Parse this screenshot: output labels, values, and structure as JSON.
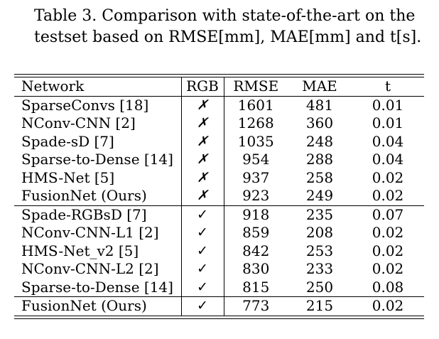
{
  "caption": {
    "line1": "Table 3. Comparison with state-of-the-art on the",
    "line2": "testset based on RMSE[mm], MAE[mm] and t[s]."
  },
  "table": {
    "headers": [
      "Network",
      "RGB",
      "RMSE",
      "MAE",
      "t"
    ],
    "marks": {
      "no": "✗",
      "yes": "✓"
    },
    "rows": [
      {
        "network": "SparseConvs [18]",
        "rgb": "✗",
        "rmse": "1601",
        "mae": "481",
        "t": "0.01"
      },
      {
        "network": "NConv-CNN [2]",
        "rgb": "✗",
        "rmse": "1268",
        "mae": "360",
        "t": "0.01"
      },
      {
        "network": "Spade-sD [7]",
        "rgb": "✗",
        "rmse": "1035",
        "mae": "248",
        "t": "0.04"
      },
      {
        "network": "Sparse-to-Dense [14]",
        "rgb": "✗",
        "rmse": "954",
        "mae": "288",
        "t": "0.04"
      },
      {
        "network": "HMS-Net [5]",
        "rgb": "✗",
        "rmse": "937",
        "mae": "258",
        "t": "0.02"
      },
      {
        "network": "FusionNet (Ours)",
        "rgb": "✗",
        "rmse": "923",
        "mae": "249",
        "t": "0.02"
      },
      {
        "network": "Spade-RGBsD [7]",
        "rgb": "✓",
        "rmse": "918",
        "mae": "235",
        "t": "0.07"
      },
      {
        "network": "NConv-CNN-L1 [2]",
        "rgb": "✓",
        "rmse": "859",
        "mae": "208",
        "t": "0.02"
      },
      {
        "network": "HMS-Net_v2 [5]",
        "rgb": "✓",
        "rmse": "842",
        "mae": "253",
        "t": "0.02"
      },
      {
        "network": "NConv-CNN-L2 [2]",
        "rgb": "✓",
        "rmse": "830",
        "mae": "233",
        "t": "0.02"
      },
      {
        "network": "Sparse-to-Dense [14]",
        "rgb": "✓",
        "rmse": "815",
        "mae": "250",
        "t": "0.08"
      },
      {
        "network": "FusionNet (Ours)",
        "rgb": "✓",
        "rmse": "773",
        "mae": "215",
        "t": "0.02"
      }
    ]
  }
}
